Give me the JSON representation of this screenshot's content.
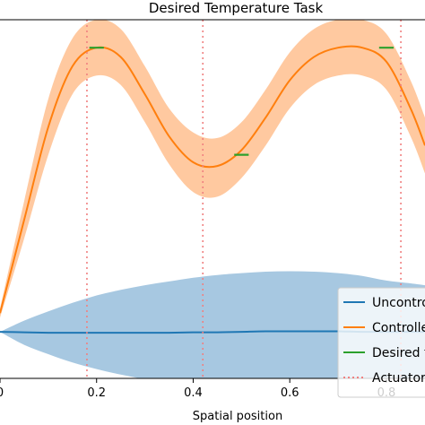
{
  "chart_data": {
    "type": "line",
    "title": "Desired Temperature Task",
    "xlabel": "Spatial position",
    "ylabel": "",
    "xlim": [
      0.0,
      0.88
    ],
    "ylim": [
      -0.5,
      3.35
    ],
    "x_ticks": [
      "0",
      "0.2",
      "0.4",
      "0.6",
      "0.8"
    ],
    "x_tick_values": [
      0.0,
      0.2,
      0.4,
      0.6,
      0.8
    ],
    "legend_position": "lower-right",
    "series": [
      {
        "name": "Uncontrolled",
        "color": "#1f77b4",
        "band_color": "#a7c8e1",
        "x": [
          0.0,
          0.05,
          0.1,
          0.15,
          0.2,
          0.25,
          0.3,
          0.35,
          0.4,
          0.45,
          0.5,
          0.55,
          0.6,
          0.65,
          0.7,
          0.75,
          0.8,
          0.85,
          0.88
        ],
        "mean": [
          0.0,
          -0.005,
          -0.01,
          -0.01,
          -0.01,
          -0.01,
          -0.01,
          -0.01,
          -0.005,
          -0.005,
          0.0,
          0.005,
          0.005,
          0.005,
          0.005,
          0.0,
          0.0,
          0.0,
          0.0
        ],
        "upper": [
          0.0,
          0.12,
          0.22,
          0.31,
          0.39,
          0.45,
          0.5,
          0.54,
          0.58,
          0.61,
          0.63,
          0.645,
          0.65,
          0.645,
          0.63,
          0.6,
          0.55,
          0.52,
          0.5
        ],
        "lower": [
          0.0,
          -0.14,
          -0.24,
          -0.33,
          -0.4,
          -0.46,
          -0.51,
          -0.55,
          -0.58,
          -0.6,
          -0.61,
          -0.62,
          -0.62,
          -0.61,
          -0.6,
          -0.58,
          -0.55,
          -0.52,
          -0.5
        ]
      },
      {
        "name": "Controlled",
        "color": "#ff7f0e",
        "band_color": "#ffc9a0",
        "x": [
          0.0,
          0.05,
          0.1,
          0.15,
          0.2,
          0.25,
          0.3,
          0.35,
          0.4,
          0.45,
          0.5,
          0.55,
          0.6,
          0.65,
          0.7,
          0.75,
          0.8,
          0.85,
          0.88
        ],
        "mean": [
          0.2,
          1.2,
          2.2,
          2.85,
          3.05,
          2.95,
          2.55,
          2.1,
          1.82,
          1.78,
          1.95,
          2.3,
          2.7,
          2.95,
          3.05,
          3.05,
          2.9,
          2.4,
          2.0
        ],
        "upper": [
          0.25,
          1.4,
          2.5,
          3.15,
          3.35,
          3.25,
          2.85,
          2.4,
          2.14,
          2.08,
          2.25,
          2.6,
          3.0,
          3.25,
          3.35,
          3.35,
          3.2,
          2.7,
          2.3
        ],
        "lower": [
          0.15,
          1.0,
          1.9,
          2.55,
          2.75,
          2.65,
          2.25,
          1.8,
          1.5,
          1.45,
          1.65,
          2.0,
          2.4,
          2.65,
          2.75,
          2.75,
          2.6,
          2.1,
          1.7
        ]
      },
      {
        "name": "Desired temperature",
        "color": "#2ca02c",
        "segments": [
          {
            "x_start": 0.185,
            "x_end": 0.215,
            "y": 3.05
          },
          {
            "x_start": 0.485,
            "x_end": 0.515,
            "y": 1.9
          },
          {
            "x_start": 0.785,
            "x_end": 0.815,
            "y": 3.05
          }
        ]
      },
      {
        "name": "Actuators",
        "color": "#f08080",
        "style": "dotted",
        "x_positions": [
          0.18,
          0.42,
          0.83
        ]
      }
    ]
  }
}
